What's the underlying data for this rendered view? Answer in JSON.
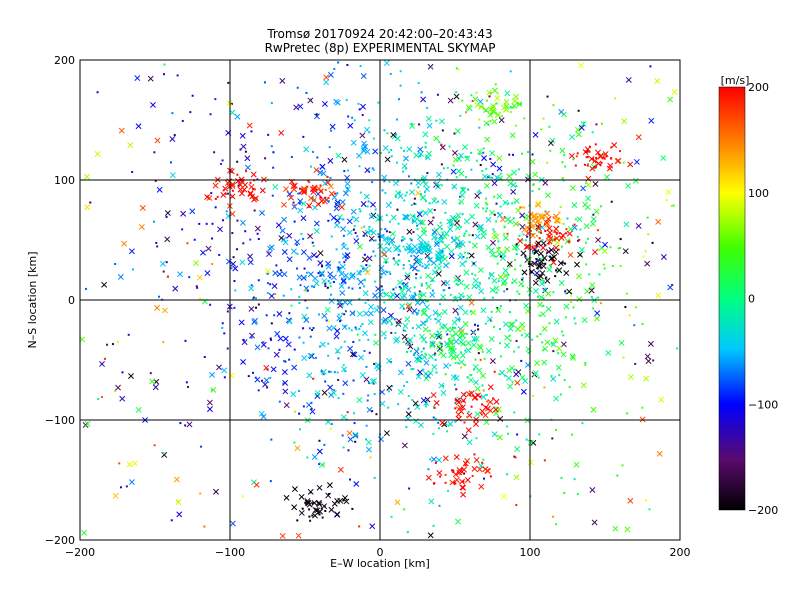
{
  "chart_data": {
    "type": "scatter",
    "title": [
      "Tromsø 20170924 20:42:00–20:43:43",
      "RwPretec (8p) EXPERIMENTAL SKYMAP"
    ],
    "xlabel": "E–W location [km]",
    "ylabel": "N–S location [km]",
    "xlim": [
      -200,
      200
    ],
    "ylim": [
      -200,
      200
    ],
    "xticks": [
      "−200",
      "−100",
      "0",
      "100",
      "200"
    ],
    "yticks": [
      "−200",
      "−100",
      "0",
      "100",
      "200"
    ],
    "grid": true,
    "colorbar": {
      "label": "[m/s]",
      "range": [
        -200,
        200
      ],
      "ticks": [
        "−200",
        "−100",
        "0",
        "100",
        "200"
      ],
      "colormap": "black-purple-blue-cyan-green-yellow-red"
    },
    "markers": [
      "dot",
      "x"
    ],
    "notable_clusters": [
      {
        "x": -95,
        "y": 95,
        "v": 200
      },
      {
        "x": -45,
        "y": 90,
        "v": 190
      },
      {
        "x": 115,
        "y": 55,
        "v": 200
      },
      {
        "x": 145,
        "y": 120,
        "v": 200
      },
      {
        "x": 60,
        "y": -90,
        "v": 200
      },
      {
        "x": 55,
        "y": -145,
        "v": 200
      },
      {
        "x": 80,
        "y": 160,
        "v": 60
      },
      {
        "x": 105,
        "y": 65,
        "v": 140
      },
      {
        "x": 30,
        "y": 40,
        "v": -40
      },
      {
        "x": 50,
        "y": -40,
        "v": 20
      },
      {
        "x": -40,
        "y": -170,
        "v": -200
      },
      {
        "x": 110,
        "y": 30,
        "v": -200
      }
    ]
  }
}
